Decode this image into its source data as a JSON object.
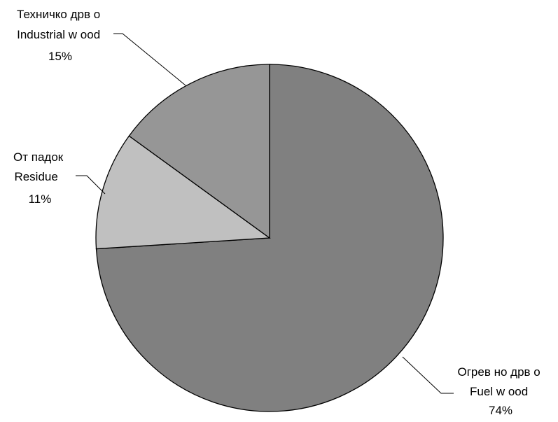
{
  "chart_data": {
    "type": "pie",
    "title": "",
    "start_angle_deg": 90,
    "direction": "clockwise",
    "slices": [
      {
        "label_line1": "Огрев но дрв о",
        "label_line2": "Fuel w ood",
        "percent_label": "74%",
        "value": 74,
        "color": "#808080"
      },
      {
        "label_line1": "От падок",
        "label_line2": "Residue",
        "percent_label": "11%",
        "value": 11,
        "color": "#c0c0c0"
      },
      {
        "label_line1": "Техничко дрв о",
        "label_line2": "Industrial w ood",
        "percent_label": "15%",
        "value": 15,
        "color": "#969696"
      }
    ],
    "edge_color": "#000000",
    "legend": "none"
  }
}
